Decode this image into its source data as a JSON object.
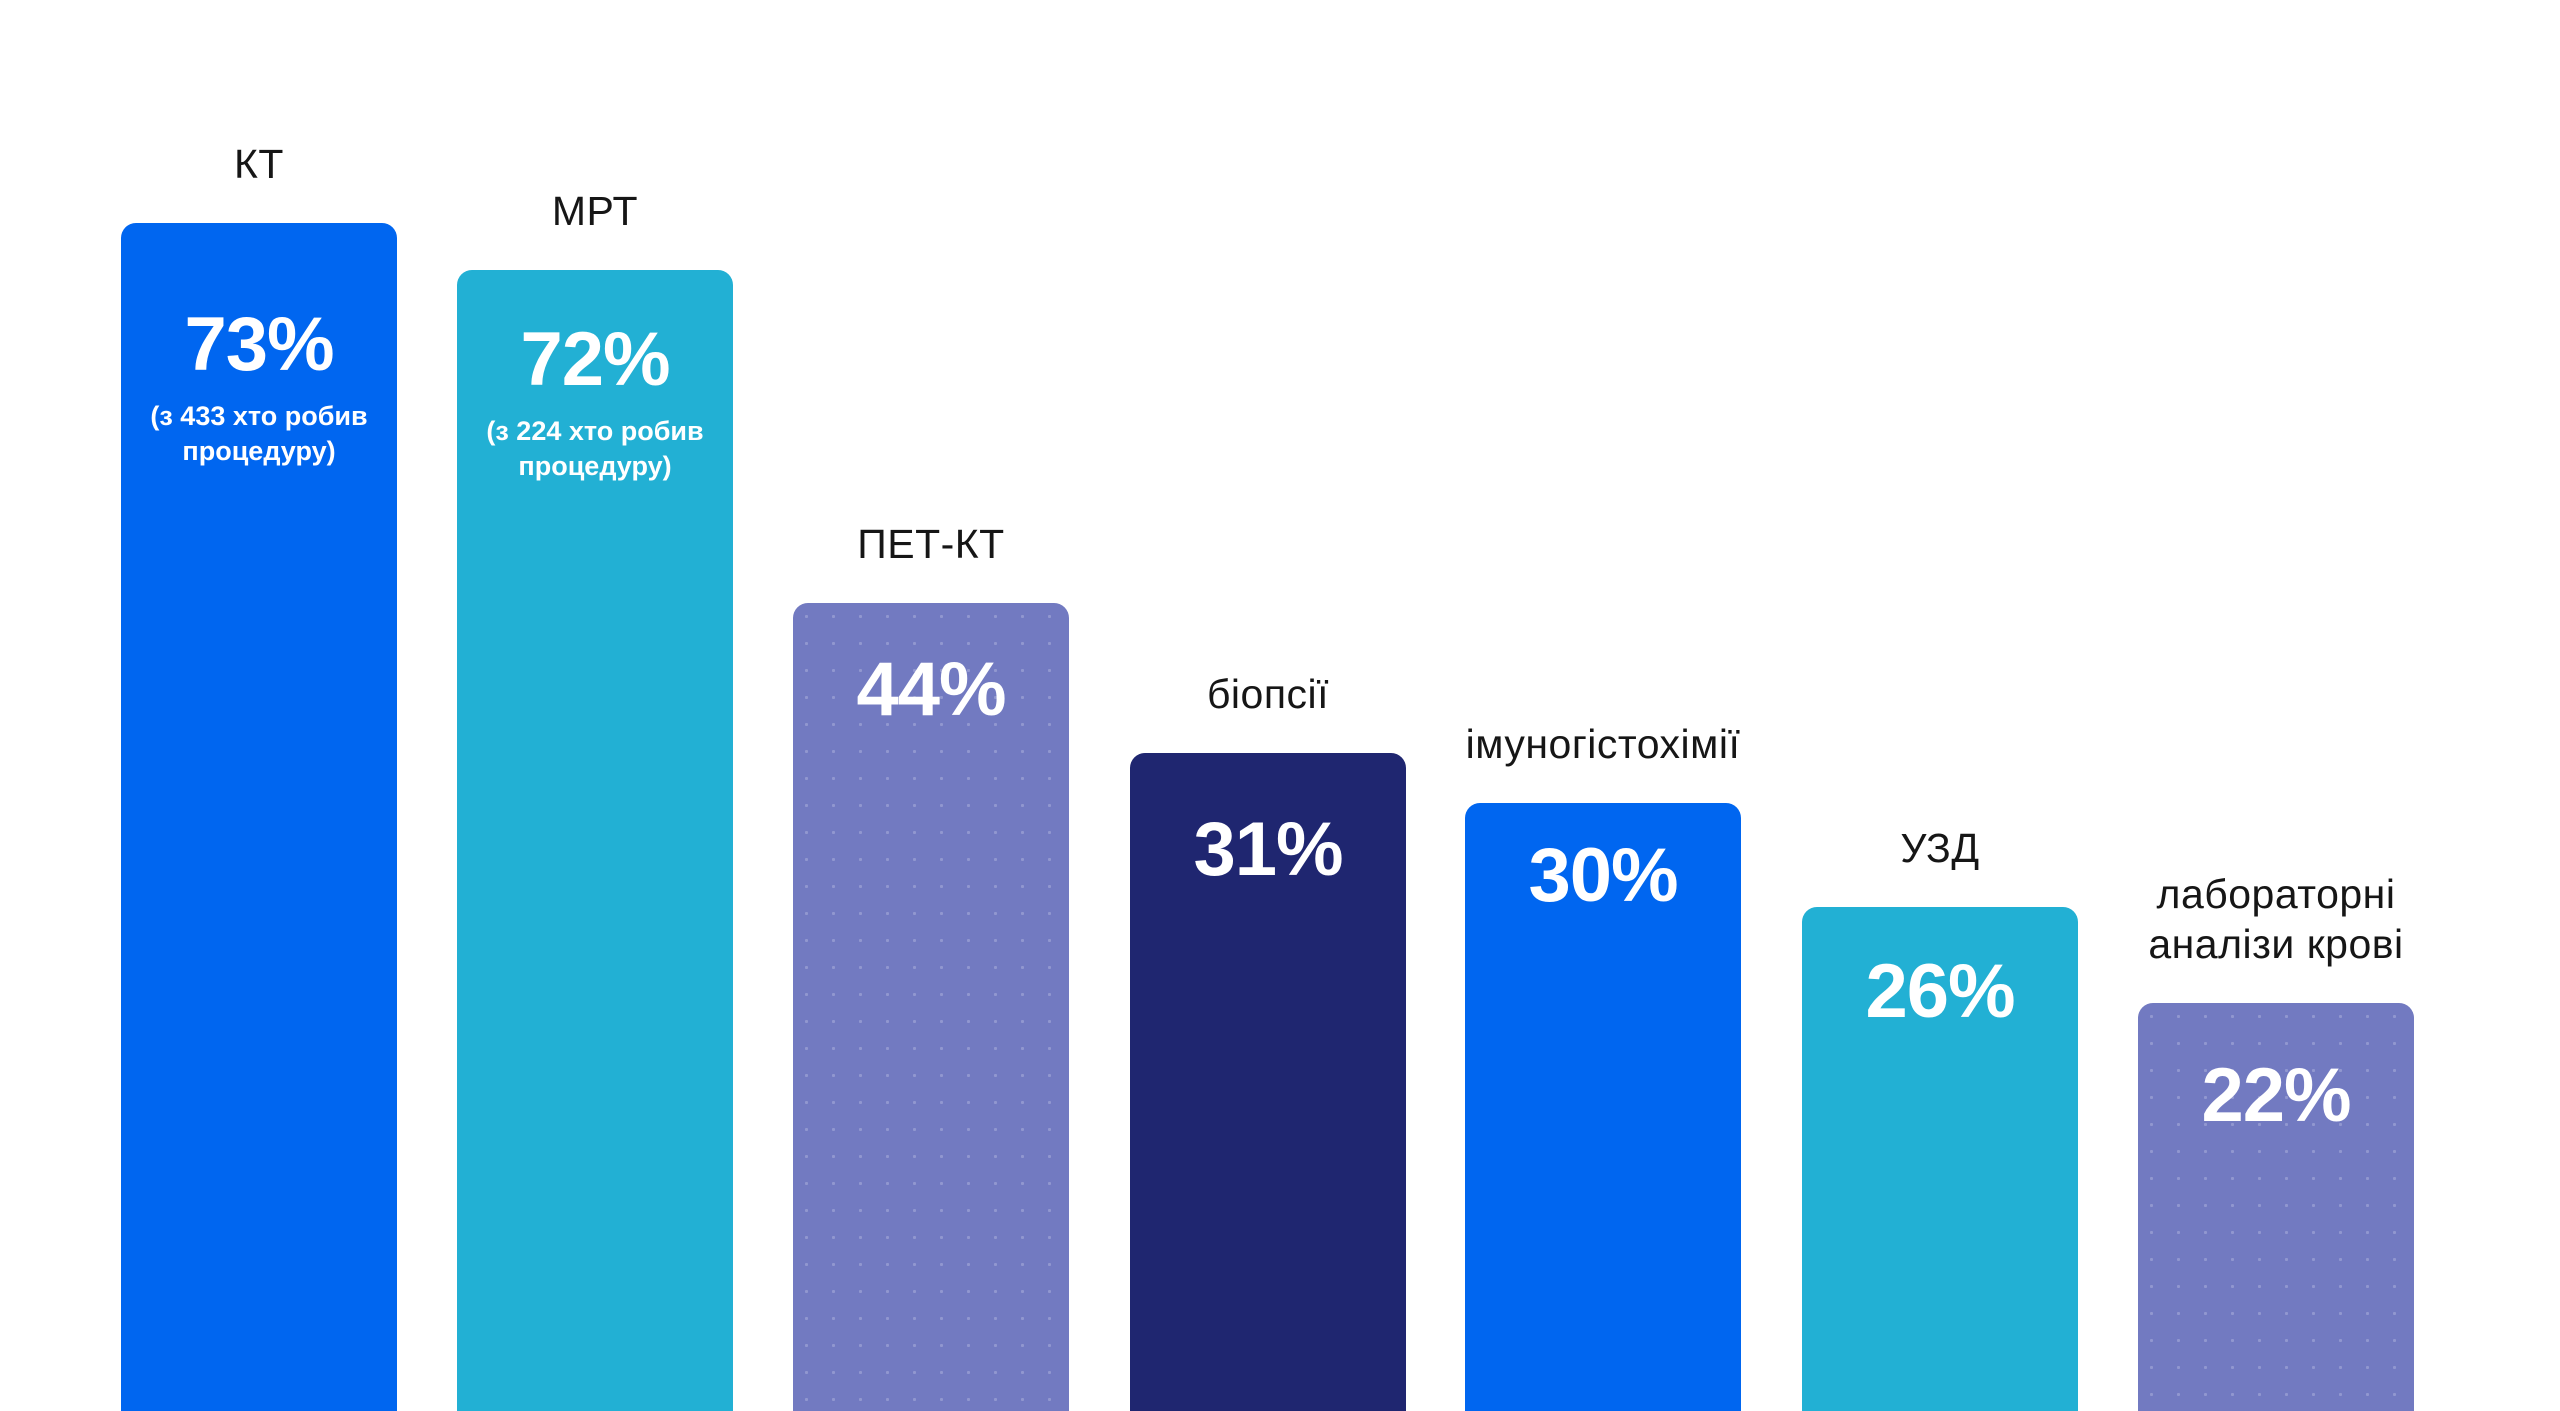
{
  "chart_data": {
    "type": "bar",
    "orientation": "vertical",
    "unit": "%",
    "title": "",
    "xlabel": "",
    "ylabel": "",
    "axes_visible": false,
    "legend": "none",
    "ylim": [
      0,
      100
    ],
    "baseline": "bars cropped at bottom edge of image",
    "categories": [
      "КТ",
      "МРТ",
      "ПЕТ-КТ",
      "біопсії",
      "імуногістохімії",
      "УЗД",
      "лабораторні аналізи крові"
    ],
    "values": [
      73,
      72,
      44,
      31,
      30,
      26,
      22
    ],
    "bars": [
      {
        "label": "КТ",
        "value": 73,
        "value_label": "73%",
        "note": "(з 433 хто робив процедуру)",
        "color": "#0066F0"
      },
      {
        "label": "МРТ",
        "value": 72,
        "value_label": "72%",
        "note": "(з 224 хто робив процедуру)",
        "color": "#22B0D4"
      },
      {
        "label": "ПЕТ-КТ",
        "value": 44,
        "value_label": "44%",
        "color": "#727AC1"
      },
      {
        "label": "біопсії",
        "value": 31,
        "value_label": "31%",
        "color": "#1F2670"
      },
      {
        "label": "імуногістохімії",
        "value": 30,
        "value_label": "30%",
        "color": "#0066F0"
      },
      {
        "label": "УЗД",
        "value": 26,
        "value_label": "26%",
        "color": "#22B0D4"
      },
      {
        "label": "лабораторні аналізи крові",
        "value": 22,
        "value_label": "22%",
        "color": "#727AC1"
      }
    ],
    "palette": {
      "blue": "#0066F0",
      "cyan": "#22B0D4",
      "violet": "#727AC1",
      "navy": "#1F2670",
      "category_label_text": "#161616",
      "bar_text": "#FFFFFF",
      "background": "#FFFFFF"
    }
  }
}
